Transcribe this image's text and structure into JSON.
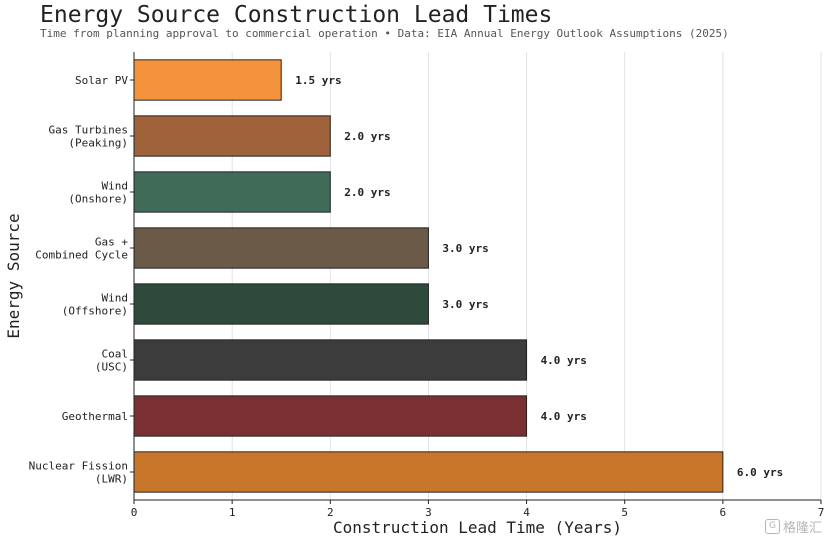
{
  "chart_data": {
    "type": "bar",
    "orientation": "horizontal",
    "title": "Energy Source Construction Lead Times",
    "subtitle": "Time from planning approval to commercial operation • Data: EIA Annual Energy Outlook Assumptions (2025)",
    "xlabel": "Construction Lead Time (Years)",
    "ylabel": "Energy Source",
    "xlim": [
      0,
      7
    ],
    "xticks": [
      0,
      1,
      2,
      3,
      4,
      5,
      6,
      7
    ],
    "grid": "x",
    "value_suffix": " yrs",
    "categories": [
      "Solar PV",
      "Gas Turbines\n(Peaking)",
      "Wind\n(Onshore)",
      "Gas +\nCombined Cycle",
      "Wind\n(Offshore)",
      "Coal\n(USC)",
      "Geothermal",
      "Nuclear Fission\n(LWR)"
    ],
    "values": [
      1.5,
      2.0,
      2.0,
      3.0,
      3.0,
      4.0,
      4.0,
      6.0
    ],
    "value_labels": [
      "1.5 yrs",
      "2.0 yrs",
      "2.0 yrs",
      "3.0 yrs",
      "3.0 yrs",
      "4.0 yrs",
      "4.0 yrs",
      "6.0 yrs"
    ],
    "colors": [
      "#f5923e",
      "#a0623a",
      "#3f6b58",
      "#6b5a47",
      "#2e4a3a",
      "#3c3c3c",
      "#7a3033",
      "#c8762a"
    ]
  },
  "watermark": {
    "icon": "logo-g-icon",
    "text": "格隆汇"
  }
}
